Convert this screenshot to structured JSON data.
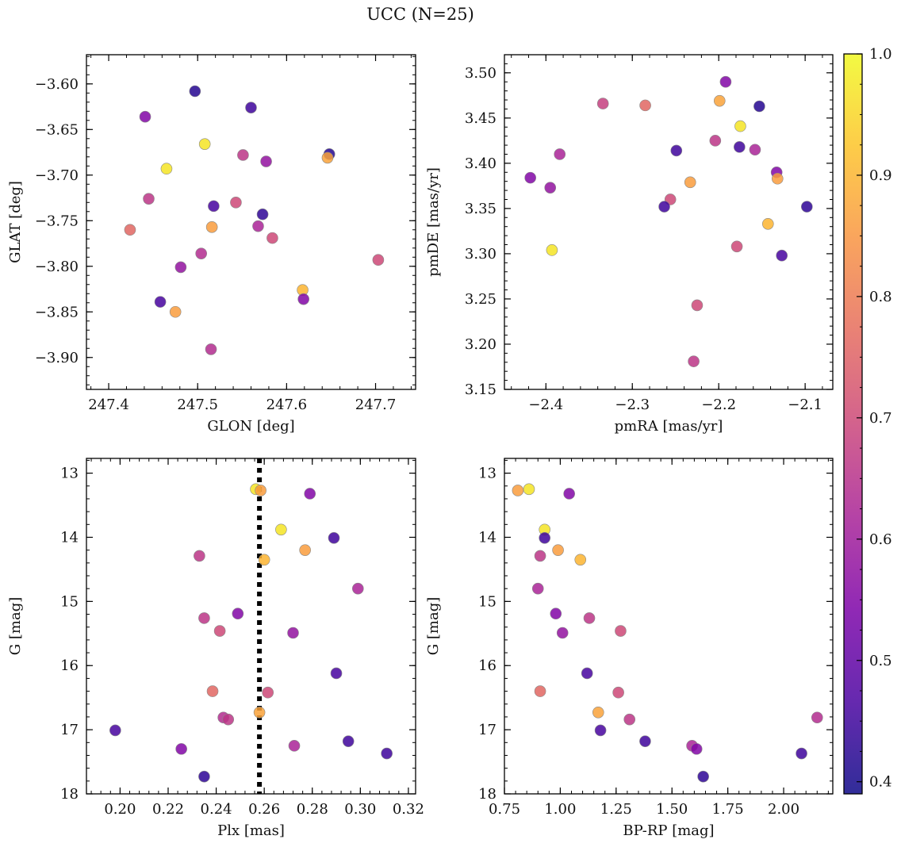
{
  "figure": {
    "title": "UCC (N=25)"
  },
  "chart_data": [
    {
      "type": "scatter",
      "xlabel": "GLON [deg]",
      "ylabel": "GLAT [deg]",
      "xlim": [
        247.375,
        247.745
      ],
      "ylim": [
        -3.935,
        -3.568
      ],
      "xticks": [
        247.4,
        247.5,
        247.6,
        247.7
      ],
      "xtick_labels": [
        "247.4",
        "247.5",
        "247.6",
        "247.7"
      ],
      "yticks": [
        -3.6,
        -3.65,
        -3.7,
        -3.75,
        -3.8,
        -3.85,
        -3.9
      ],
      "ytick_labels": [
        "−3.60",
        "−3.65",
        "−3.70",
        "−3.75",
        "−3.80",
        "−3.85",
        "−3.90"
      ],
      "points": [
        {
          "x": 247.497,
          "y": -3.608,
          "c": 0.42
        },
        {
          "x": 247.56,
          "y": -3.626,
          "c": 0.45
        },
        {
          "x": 247.441,
          "y": -3.636,
          "c": 0.55
        },
        {
          "x": 247.508,
          "y": -3.666,
          "c": 0.97
        },
        {
          "x": 247.551,
          "y": -3.678,
          "c": 0.66
        },
        {
          "x": 247.577,
          "y": -3.685,
          "c": 0.58
        },
        {
          "x": 247.648,
          "y": -3.677,
          "c": 0.42
        },
        {
          "x": 247.646,
          "y": -3.681,
          "c": 0.87
        },
        {
          "x": 247.465,
          "y": -3.693,
          "c": 0.97
        },
        {
          "x": 247.445,
          "y": -3.726,
          "c": 0.66
        },
        {
          "x": 247.518,
          "y": -3.734,
          "c": 0.46
        },
        {
          "x": 247.543,
          "y": -3.73,
          "c": 0.7
        },
        {
          "x": 247.573,
          "y": -3.743,
          "c": 0.43
        },
        {
          "x": 247.424,
          "y": -3.76,
          "c": 0.76
        },
        {
          "x": 247.516,
          "y": -3.757,
          "c": 0.86
        },
        {
          "x": 247.568,
          "y": -3.756,
          "c": 0.62
        },
        {
          "x": 247.584,
          "y": -3.769,
          "c": 0.7
        },
        {
          "x": 247.504,
          "y": -3.786,
          "c": 0.64
        },
        {
          "x": 247.481,
          "y": -3.801,
          "c": 0.58
        },
        {
          "x": 247.703,
          "y": -3.793,
          "c": 0.7
        },
        {
          "x": 247.618,
          "y": -3.826,
          "c": 0.9
        },
        {
          "x": 247.619,
          "y": -3.836,
          "c": 0.55
        },
        {
          "x": 247.458,
          "y": -3.839,
          "c": 0.46
        },
        {
          "x": 247.475,
          "y": -3.85,
          "c": 0.86
        },
        {
          "x": 247.515,
          "y": -3.891,
          "c": 0.64
        }
      ]
    },
    {
      "type": "scatter",
      "xlabel": "pmRA [mas/yr]",
      "ylabel": "pmDE [mas/yr]",
      "xlim": [
        -2.448,
        -2.068
      ],
      "ylim": [
        3.15,
        3.52
      ],
      "xticks": [
        -2.4,
        -2.3,
        -2.2,
        -2.1
      ],
      "xtick_labels": [
        "−2.4",
        "−2.3",
        "−2.2",
        "−2.1"
      ],
      "yticks": [
        3.15,
        3.2,
        3.25,
        3.3,
        3.35,
        3.4,
        3.45,
        3.5
      ],
      "ytick_labels": [
        "3.15",
        "3.20",
        "3.25",
        "3.30",
        "3.35",
        "3.40",
        "3.45",
        "3.50"
      ],
      "points": [
        {
          "x": -2.192,
          "y": 3.49,
          "c": 0.55
        },
        {
          "x": -2.199,
          "y": 3.469,
          "c": 0.87
        },
        {
          "x": -2.334,
          "y": 3.466,
          "c": 0.68
        },
        {
          "x": -2.285,
          "y": 3.464,
          "c": 0.76
        },
        {
          "x": -2.153,
          "y": 3.463,
          "c": 0.42
        },
        {
          "x": -2.175,
          "y": 3.441,
          "c": 0.97
        },
        {
          "x": -2.204,
          "y": 3.425,
          "c": 0.66
        },
        {
          "x": -2.176,
          "y": 3.418,
          "c": 0.45
        },
        {
          "x": -2.158,
          "y": 3.415,
          "c": 0.62
        },
        {
          "x": -2.249,
          "y": 3.414,
          "c": 0.45
        },
        {
          "x": -2.384,
          "y": 3.41,
          "c": 0.62
        },
        {
          "x": -2.133,
          "y": 3.39,
          "c": 0.55
        },
        {
          "x": -2.418,
          "y": 3.384,
          "c": 0.55
        },
        {
          "x": -2.132,
          "y": 3.383,
          "c": 0.86
        },
        {
          "x": -2.233,
          "y": 3.379,
          "c": 0.86
        },
        {
          "x": -2.395,
          "y": 3.373,
          "c": 0.58
        },
        {
          "x": -2.256,
          "y": 3.36,
          "c": 0.7
        },
        {
          "x": -2.263,
          "y": 3.352,
          "c": 0.45
        },
        {
          "x": -2.098,
          "y": 3.352,
          "c": 0.43
        },
        {
          "x": -2.143,
          "y": 3.333,
          "c": 0.9
        },
        {
          "x": -2.179,
          "y": 3.308,
          "c": 0.7
        },
        {
          "x": -2.393,
          "y": 3.304,
          "c": 0.97
        },
        {
          "x": -2.127,
          "y": 3.298,
          "c": 0.46
        },
        {
          "x": -2.225,
          "y": 3.243,
          "c": 0.7
        },
        {
          "x": -2.229,
          "y": 3.181,
          "c": 0.66
        }
      ]
    },
    {
      "type": "scatter",
      "xlabel": "Plx [mas]",
      "ylabel": "G [mag]",
      "xlim": [
        0.186,
        0.323
      ],
      "ylim": [
        18.0,
        12.77
      ],
      "y_inverted": true,
      "xticks": [
        0.2,
        0.22,
        0.24,
        0.26,
        0.28,
        0.3,
        0.32
      ],
      "xtick_labels": [
        "0.20",
        "0.22",
        "0.24",
        "0.26",
        "0.28",
        "0.30",
        "0.32"
      ],
      "yticks": [
        13,
        14,
        15,
        16,
        17,
        18
      ],
      "ytick_labels": [
        "13",
        "14",
        "15",
        "16",
        "17",
        "18"
      ],
      "vline": 0.258,
      "points": [
        {
          "x": 0.2565,
          "y": 13.25,
          "c": 0.97
        },
        {
          "x": 0.2585,
          "y": 13.27,
          "c": 0.86
        },
        {
          "x": 0.279,
          "y": 13.32,
          "c": 0.55
        },
        {
          "x": 0.267,
          "y": 13.88,
          "c": 0.97
        },
        {
          "x": 0.289,
          "y": 14.01,
          "c": 0.45
        },
        {
          "x": 0.277,
          "y": 14.2,
          "c": 0.86
        },
        {
          "x": 0.233,
          "y": 14.29,
          "c": 0.66
        },
        {
          "x": 0.26,
          "y": 14.35,
          "c": 0.9
        },
        {
          "x": 0.299,
          "y": 14.8,
          "c": 0.62
        },
        {
          "x": 0.249,
          "y": 15.19,
          "c": 0.55
        },
        {
          "x": 0.235,
          "y": 15.26,
          "c": 0.66
        },
        {
          "x": 0.2415,
          "y": 15.46,
          "c": 0.7
        },
        {
          "x": 0.272,
          "y": 15.49,
          "c": 0.58
        },
        {
          "x": 0.29,
          "y": 16.12,
          "c": 0.46
        },
        {
          "x": 0.2385,
          "y": 16.4,
          "c": 0.76
        },
        {
          "x": 0.2615,
          "y": 16.42,
          "c": 0.7
        },
        {
          "x": 0.258,
          "y": 16.73,
          "c": 0.87
        },
        {
          "x": 0.243,
          "y": 16.81,
          "c": 0.64
        },
        {
          "x": 0.245,
          "y": 16.84,
          "c": 0.66
        },
        {
          "x": 0.198,
          "y": 17.01,
          "c": 0.46
        },
        {
          "x": 0.295,
          "y": 17.18,
          "c": 0.45
        },
        {
          "x": 0.2725,
          "y": 17.25,
          "c": 0.62
        },
        {
          "x": 0.2255,
          "y": 17.3,
          "c": 0.55
        },
        {
          "x": 0.311,
          "y": 17.37,
          "c": 0.45
        },
        {
          "x": 0.235,
          "y": 17.73,
          "c": 0.43
        }
      ]
    },
    {
      "type": "scatter",
      "xlabel": "BP-RP [mag]",
      "ylabel": "G [mag]",
      "xlim": [
        0.75,
        2.22
      ],
      "ylim": [
        18.0,
        12.77
      ],
      "y_inverted": true,
      "xticks": [
        0.75,
        1.0,
        1.25,
        1.5,
        1.75,
        2.0
      ],
      "xtick_labels": [
        "0.75",
        "1.00",
        "1.25",
        "1.50",
        "1.75",
        "2.00"
      ],
      "yticks": [
        13,
        14,
        15,
        16,
        17,
        18
      ],
      "ytick_labels": [
        "13",
        "14",
        "15",
        "16",
        "17",
        "18"
      ],
      "points": [
        {
          "x": 0.81,
          "y": 13.27,
          "c": 0.86
        },
        {
          "x": 0.86,
          "y": 13.25,
          "c": 0.97
        },
        {
          "x": 1.04,
          "y": 13.32,
          "c": 0.55
        },
        {
          "x": 0.93,
          "y": 13.88,
          "c": 0.97
        },
        {
          "x": 0.93,
          "y": 14.01,
          "c": 0.45
        },
        {
          "x": 0.99,
          "y": 14.2,
          "c": 0.86
        },
        {
          "x": 0.91,
          "y": 14.29,
          "c": 0.66
        },
        {
          "x": 1.09,
          "y": 14.35,
          "c": 0.9
        },
        {
          "x": 0.9,
          "y": 14.8,
          "c": 0.62
        },
        {
          "x": 0.98,
          "y": 15.19,
          "c": 0.55
        },
        {
          "x": 1.13,
          "y": 15.26,
          "c": 0.66
        },
        {
          "x": 1.27,
          "y": 15.46,
          "c": 0.7
        },
        {
          "x": 1.01,
          "y": 15.49,
          "c": 0.58
        },
        {
          "x": 1.12,
          "y": 16.12,
          "c": 0.46
        },
        {
          "x": 0.91,
          "y": 16.4,
          "c": 0.76
        },
        {
          "x": 1.26,
          "y": 16.42,
          "c": 0.7
        },
        {
          "x": 1.17,
          "y": 16.73,
          "c": 0.87
        },
        {
          "x": 2.15,
          "y": 16.81,
          "c": 0.64
        },
        {
          "x": 1.31,
          "y": 16.84,
          "c": 0.66
        },
        {
          "x": 1.18,
          "y": 17.01,
          "c": 0.46
        },
        {
          "x": 1.38,
          "y": 17.18,
          "c": 0.45
        },
        {
          "x": 1.59,
          "y": 17.25,
          "c": 0.62
        },
        {
          "x": 1.61,
          "y": 17.3,
          "c": 0.55
        },
        {
          "x": 2.08,
          "y": 17.37,
          "c": 0.45
        },
        {
          "x": 1.64,
          "y": 17.73,
          "c": 0.43
        }
      ]
    }
  ],
  "colorbar": {
    "colormap": "plasma",
    "range": [
      0.39,
      1.0
    ],
    "ticks": [
      0.4,
      0.5,
      0.6,
      0.7,
      0.8,
      0.9,
      1.0
    ],
    "tick_labels": [
      "0.4",
      "0.5",
      "0.6",
      "0.7",
      "0.8",
      "0.9",
      "1.0"
    ]
  },
  "colors": {
    "vline": "#000000",
    "marker_alpha": 0.85
  }
}
